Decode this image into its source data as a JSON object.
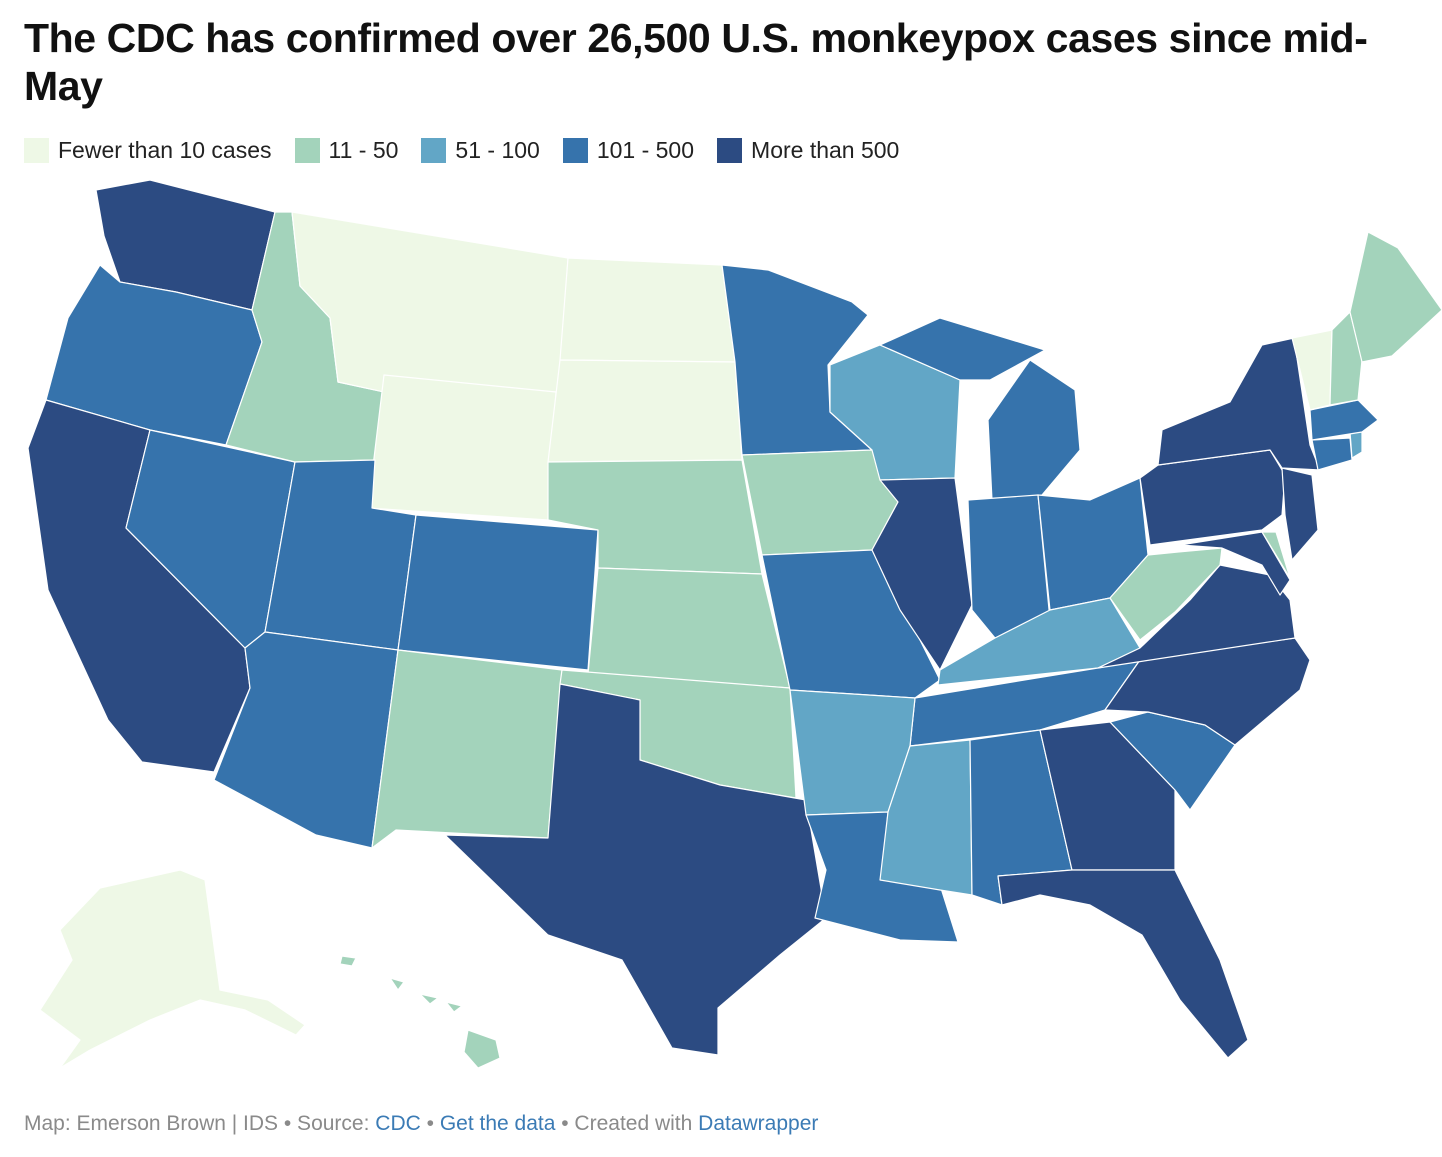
{
  "title": "The CDC has confirmed over 26,500 U.S. monkeypox cases since mid-May",
  "legend": [
    {
      "label": "Fewer than 10 cases",
      "color": "#eef8e6"
    },
    {
      "label": "11 - 50",
      "color": "#a3d3bb"
    },
    {
      "label": "51 - 100",
      "color": "#62a6c6"
    },
    {
      "label": "101 - 500",
      "color": "#3673ac"
    },
    {
      "label": "More than 500",
      "color": "#2c4b82"
    }
  ],
  "map_data": {
    "type": "choropleth",
    "region": "United States",
    "classes": [
      "Fewer than 10 cases",
      "11 - 50",
      "51 - 100",
      "101 - 500",
      "More than 500"
    ],
    "states": {
      "AK": 0,
      "MT": 0,
      "WY": 0,
      "ND": 0,
      "SD": 0,
      "VT": 0,
      "HI": 1,
      "ID": 1,
      "NE": 1,
      "KS": 1,
      "OK": 1,
      "NM": 1,
      "IA": 1,
      "WV": 1,
      "NH": 1,
      "ME": 1,
      "DE": 1,
      "WI": 2,
      "KY": 2,
      "AR": 2,
      "MS": 2,
      "RI": 2,
      "OR": 3,
      "NV": 3,
      "UT": 3,
      "CO": 3,
      "AZ": 3,
      "MN": 3,
      "MO": 3,
      "LA": 3,
      "MI": 3,
      "IN": 3,
      "OH": 3,
      "TN": 3,
      "AL": 3,
      "SC": 3,
      "MA": 3,
      "CT": 3,
      "WA": 4,
      "CA": 4,
      "TX": 4,
      "IL": 4,
      "GA": 4,
      "FL": 4,
      "NC": 4,
      "VA": 4,
      "MD": 4,
      "PA": 4,
      "NJ": 4,
      "NY": 4
    }
  },
  "footer": {
    "prefix": "Map: Emerson Brown | IDS • Source: ",
    "source_link": "CDC",
    "sep1": " • ",
    "data_link": "Get the data",
    "sep2": " • Created with ",
    "tool_link": "Datawrapper"
  }
}
